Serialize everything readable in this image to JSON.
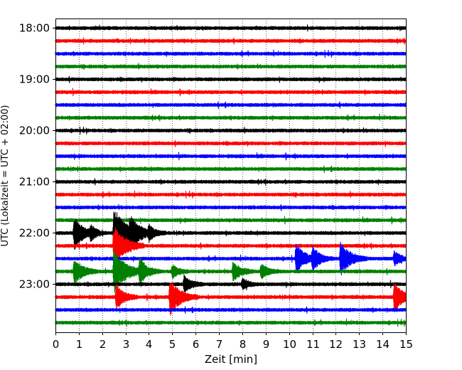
{
  "chart_data": {
    "type": "line",
    "title": "",
    "xlabel": "Zeit  [min]",
    "ylabel": "UTC (Lokalzeit = UTC + 02:00)",
    "xlim": [
      0,
      15
    ],
    "x_ticks": [
      0,
      1,
      2,
      3,
      4,
      5,
      6,
      7,
      8,
      9,
      10,
      11,
      12,
      13,
      14,
      15
    ],
    "x_tick_labels": [
      "0",
      "1",
      "2",
      "3",
      "4",
      "5",
      "6",
      "7",
      "8",
      "9",
      "10",
      "11",
      "12",
      "13",
      "14",
      "15"
    ],
    "y_tick_labels": [
      "18:00",
      "19:00",
      "20:00",
      "21:00",
      "22:00",
      "23:00"
    ],
    "grid": "vertical dotted lines at each minute",
    "trace_colors": [
      "#000000",
      "#ff0000",
      "#0000ff",
      "#008000"
    ],
    "traces_start": "18:00",
    "trace_interval_min": 15,
    "trace_count": 24,
    "events": [
      {
        "trace": 16,
        "x": 0.8,
        "amp": 2.2
      },
      {
        "trace": 16,
        "x": 1.5,
        "amp": 0.8
      },
      {
        "trace": 16,
        "x": 2.5,
        "amp": 3.5
      },
      {
        "trace": 16,
        "x": 3.2,
        "amp": 1.8
      },
      {
        "trace": 16,
        "x": 4.0,
        "amp": 1.0
      },
      {
        "trace": 17,
        "x": 2.5,
        "amp": 2.8
      },
      {
        "trace": 18,
        "x": 10.3,
        "amp": 2.0
      },
      {
        "trace": 18,
        "x": 11.0,
        "amp": 1.5
      },
      {
        "trace": 18,
        "x": 12.2,
        "amp": 2.3
      },
      {
        "trace": 18,
        "x": 14.5,
        "amp": 1.0
      },
      {
        "trace": 19,
        "x": 0.8,
        "amp": 1.8
      },
      {
        "trace": 19,
        "x": 2.5,
        "amp": 3.0
      },
      {
        "trace": 19,
        "x": 3.6,
        "amp": 1.6
      },
      {
        "trace": 19,
        "x": 5.0,
        "amp": 0.9
      },
      {
        "trace": 19,
        "x": 7.6,
        "amp": 1.4
      },
      {
        "trace": 19,
        "x": 8.8,
        "amp": 1.1
      },
      {
        "trace": 20,
        "x": 5.5,
        "amp": 1.2
      },
      {
        "trace": 20,
        "x": 8.0,
        "amp": 0.8
      },
      {
        "trace": 21,
        "x": 2.6,
        "amp": 1.6
      },
      {
        "trace": 21,
        "x": 4.9,
        "amp": 2.5
      },
      {
        "trace": 21,
        "x": 14.5,
        "amp": 2.0
      }
    ]
  }
}
